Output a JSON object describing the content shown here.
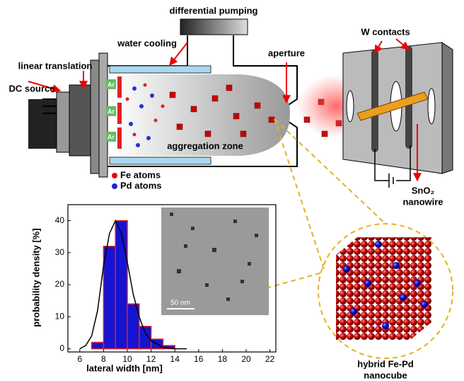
{
  "diagram": {
    "pumping": "differential pumping",
    "cooling": "water cooling",
    "translation": "linear translation",
    "source": "DC source",
    "aperture": "aperture",
    "contacts": "W contacts",
    "zone": "aggregation zone",
    "fe": "Fe atoms",
    "pd": "Pd atoms",
    "gas": "Ar",
    "wire1": "SnO₂",
    "wire2": "nanowire",
    "cube1": "hybrid Fe-Pd",
    "cube2": "nanocube",
    "scale": "50 nm"
  },
  "chart_data": {
    "type": "histogram",
    "xlabel": "lateral width [nm]",
    "ylabel": "probability density [%]",
    "bins": [
      7,
      8,
      9,
      10,
      11,
      12,
      13,
      14
    ],
    "values": [
      2,
      32,
      40,
      14,
      7,
      3,
      1
    ],
    "color": "#1414d2",
    "edgecolor": "#e02020",
    "fit": {
      "x": [
        6,
        6.5,
        7,
        7.5,
        8,
        8.5,
        9,
        9.5,
        10,
        10.5,
        11,
        11.5,
        12,
        13,
        14,
        15
      ],
      "y": [
        0,
        1,
        4,
        12,
        26,
        36,
        40,
        36,
        27,
        17,
        10,
        5,
        2.5,
        0.5,
        0,
        0
      ],
      "color": "#000000"
    },
    "xlim": [
      5,
      22.5
    ],
    "ylim": [
      -1,
      45
    ],
    "xticks": [
      6,
      8,
      10,
      12,
      14,
      16,
      18,
      20,
      22
    ],
    "yticks": [
      0,
      10,
      20,
      30,
      40
    ]
  }
}
